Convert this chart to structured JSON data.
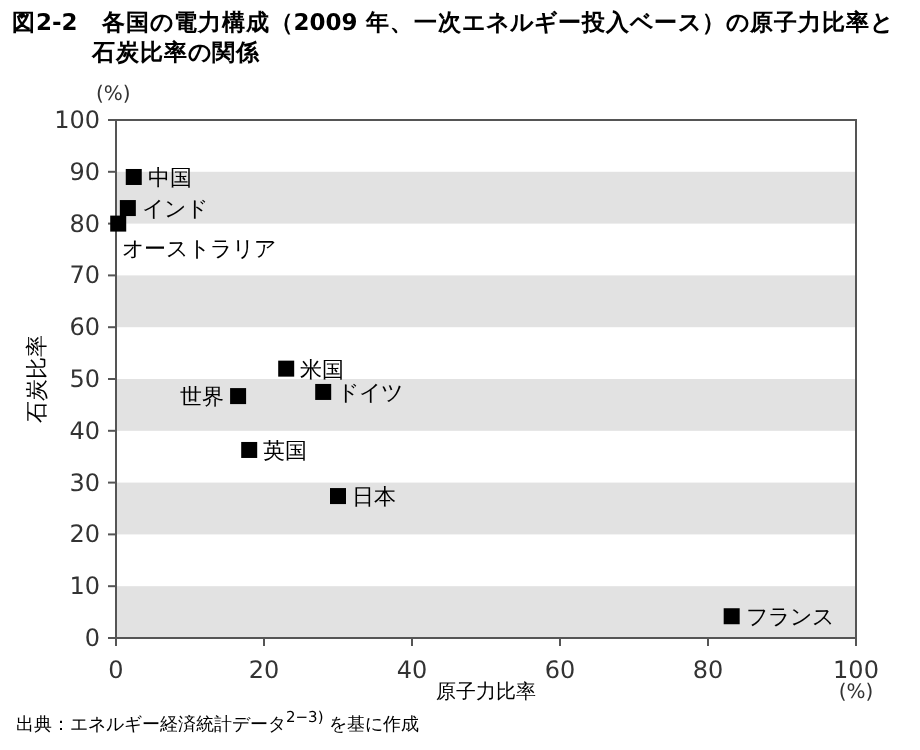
{
  "chart_data": {
    "type": "scatter",
    "title": "図2-2　各国の電力構成（2009 年、一次エネルギー投入ベース）の原子力比率と石炭比率の関係",
    "xlabel": "原子力比率",
    "ylabel": "石炭比率",
    "x": [
      2.4,
      1.6,
      0.3,
      23,
      16.5,
      28,
      18,
      30,
      83.2
    ],
    "values": [
      89,
      83,
      80,
      52,
      46.7,
      47.5,
      36.3,
      27.4,
      4.2
    ],
    "color": "#000000",
    "marker": "square",
    "grid": false,
    "xlim": [
      0,
      100
    ],
    "ylim": [
      0,
      100
    ],
    "xticks": [
      0,
      20,
      40,
      60,
      80,
      100
    ],
    "yticks": [
      0,
      10,
      20,
      30,
      40,
      50,
      60,
      70,
      80,
      90,
      100
    ],
    "bands": [
      {
        "axis": "y",
        "from": 0,
        "to": 10,
        "color": "#e2e2e2"
      },
      {
        "axis": "y",
        "from": 20,
        "to": 30,
        "color": "#e2e2e2"
      },
      {
        "axis": "y",
        "from": 40,
        "to": 50,
        "color": "#e2e2e2"
      },
      {
        "axis": "y",
        "from": 60,
        "to": 70,
        "color": "#e2e2e2"
      },
      {
        "axis": "y",
        "from": 80,
        "to": 90,
        "color": "#e2e2e2"
      }
    ],
    "annotations": [
      {
        "text": "中国",
        "x": 2.4,
        "y": 89
      },
      {
        "text": "インド",
        "x": 1.6,
        "y": 83
      },
      {
        "text": "オーストラリア",
        "x": 0.3,
        "y": 80
      },
      {
        "text": "米国",
        "x": 23,
        "y": 52
      },
      {
        "text": "世界",
        "x": 16.5,
        "y": 46.7
      },
      {
        "text": "ドイツ",
        "x": 28,
        "y": 47.5
      },
      {
        "text": "英国",
        "x": 18,
        "y": 36.3
      },
      {
        "text": "日本",
        "x": 30,
        "y": 27.4
      },
      {
        "text": "フランス",
        "x": 83.2,
        "y": 4.2
      },
      "(%)",
      "(%)",
      "出典：エネルギー経済統計データ$^{2−3)}$ を基に作成"
    ]
  }
}
